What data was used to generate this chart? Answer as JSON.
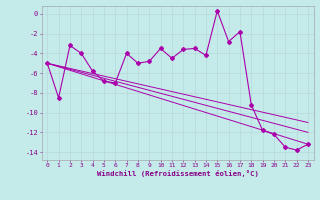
{
  "xlabel": "Windchill (Refroidissement éolien,°C)",
  "bg_color": "#c5eaea",
  "line_color": "#aa00aa",
  "grid_color": "#b8d8d8",
  "xlim": [
    -0.5,
    23.5
  ],
  "ylim": [
    -14.8,
    0.8
  ],
  "xticks": [
    0,
    1,
    2,
    3,
    4,
    5,
    6,
    7,
    8,
    9,
    10,
    11,
    12,
    13,
    14,
    15,
    16,
    17,
    18,
    19,
    20,
    21,
    22,
    23
  ],
  "yticks": [
    0,
    -2,
    -4,
    -6,
    -8,
    -10,
    -12,
    -14
  ],
  "series1_x": [
    0,
    1,
    2,
    3,
    4,
    5,
    6,
    7,
    8,
    9,
    10,
    11,
    12,
    13,
    14,
    15,
    16,
    17,
    18,
    19,
    20,
    21,
    22,
    23
  ],
  "series1_y": [
    -5.0,
    -8.5,
    -3.2,
    -4.0,
    -5.8,
    -6.8,
    -7.0,
    -4.0,
    -5.0,
    -4.8,
    -3.5,
    -4.5,
    -3.6,
    -3.5,
    -4.2,
    0.3,
    -2.8,
    -1.8,
    -9.2,
    -11.8,
    -12.2,
    -13.5,
    -13.8,
    -13.2
  ],
  "series2_x": [
    0,
    23
  ],
  "series2_y": [
    -5.0,
    -13.2
  ],
  "series3_x": [
    0,
    23
  ],
  "series3_y": [
    -5.0,
    -11.0
  ],
  "series4_x": [
    0,
    23
  ],
  "series4_y": [
    -5.0,
    -12.0
  ]
}
